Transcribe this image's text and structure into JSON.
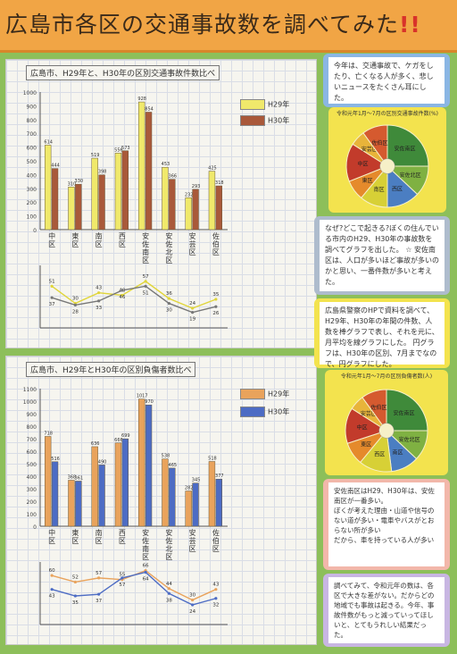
{
  "title": "広島市各区の交通事故数を調べてみた",
  "title_marks": "!!",
  "chart1": {
    "title": "広島市、H29年と、H30年の区別交通事故件数比べ",
    "legend": [
      "H29年",
      "H30年"
    ],
    "colors": [
      "#f0e96b",
      "#a9593a"
    ],
    "line_legend": [
      "H29年",
      "H30年"
    ],
    "line_label": "(千件あたり)"
  },
  "chart2": {
    "title": "広島市、H29年とH30年の区別負傷者数比べ",
    "legend": [
      "H29年",
      "H30年"
    ],
    "colors": [
      "#e9a35c",
      "#4d6cc4"
    ],
    "line_legend": [
      "H29年",
      "H30年"
    ],
    "line_label": "(千人あたり)"
  },
  "chart_data": [
    {
      "type": "bar",
      "title": "広島市、H29年と、H30年の区別交通事故件数比べ",
      "categories": [
        "中区",
        "東区",
        "南区",
        "西区",
        "安佐南区",
        "安佐北区",
        "安芸区",
        "佐伯区"
      ],
      "series": [
        {
          "name": "H29年",
          "values": [
            614,
            310,
            519,
            556,
            928,
            453,
            232,
            425
          ]
        },
        {
          "name": "H30年",
          "values": [
            444,
            330,
            398,
            573,
            854,
            366,
            293,
            318
          ]
        }
      ],
      "ylim": [
        0,
        1000
      ],
      "yticks": [
        0,
        100,
        200,
        300,
        400,
        500,
        600,
        700,
        800,
        900,
        1000
      ]
    },
    {
      "type": "line",
      "title": "",
      "categories": [
        "中区",
        "東区",
        "南区",
        "西区",
        "安佐南区",
        "安佐北区",
        "安芸区",
        "佐伯区"
      ],
      "series": [
        {
          "name": "H29年",
          "values": [
            51,
            30,
            43,
            40,
            57,
            36,
            24,
            35
          ]
        },
        {
          "name": "H30年",
          "values": [
            37,
            28,
            33,
            46,
            51,
            30,
            19,
            26
          ]
        }
      ]
    },
    {
      "type": "bar",
      "title": "広島市、H29年とH30年の区別負傷者数比べ",
      "categories": [
        "中区",
        "東区",
        "南区",
        "西区",
        "安佐南区",
        "安佐北区",
        "安芸区",
        "佐伯区"
      ],
      "series": [
        {
          "name": "H29年",
          "values": [
            718,
            368,
            636,
            666,
            1017,
            538,
            282,
            518
          ]
        },
        {
          "name": "H30年",
          "values": [
            516,
            361,
            490,
            699,
            970,
            465,
            345,
            377
          ]
        }
      ],
      "ylim": [
        0,
        1100
      ],
      "yticks": [
        0,
        100,
        200,
        300,
        400,
        500,
        600,
        700,
        800,
        900,
        1000,
        1100
      ]
    },
    {
      "type": "line",
      "title": "",
      "categories": [
        "中区",
        "東区",
        "南区",
        "西区",
        "安佐南区",
        "安佐北区",
        "安芸区",
        "佐伯区"
      ],
      "series": [
        {
          "name": "H29年",
          "values": [
            60,
            52,
            57,
            55,
            66,
            44,
            30,
            43
          ]
        },
        {
          "name": "H30年",
          "values": [
            43,
            35,
            37,
            57,
            64,
            38,
            24,
            32
          ]
        }
      ]
    }
  ],
  "notes": {
    "n1": "今年は、交通事故で、ケガをしたり、亡くなる人が多く、悲しいニュースをたくさん耳にした。",
    "n2": "なぜ?どこで起きる?ぼくの住んでいる市内のH29、H30年の事故数を調べてグラフを出した。",
    "n2b": "☆ 安佐南区は、人口が多いほど事故が多いのかと思い、一番件数が多いと考えた。",
    "n3": "広島県警察のHPで資料を調べて、H29年、H30年の年間の件数、人数を棒グラフで表し、それを元に、月平均を線グラフにした。",
    "n3b": "円グラフは、H30年の区別、7月までなので、円グラフにした。",
    "n4": "安佐南区はH29、H30年は、安佐南区が一番多い。",
    "n4b": "ぼくが考えた理由・山道や信号のない道が多い・電車やバスがとおらない所が多い",
    "n4c": "だから、車を持っている人が多い",
    "n5": "調べてみて、令和元年の数は、各区で大きな差がない。だからどの地域でも事故は起きる。今年、事故件数がもっと減っていってほしいと、とてもうれしい結果だった。"
  },
  "pie1_label": "令和元年1月〜7月の区別交通事故件数(%)",
  "pie2_label": "令和元年1月〜7月の区別負傷者数(人)",
  "pie_colors": [
    "#3f8a3a",
    "#7fb142",
    "#4b7ec2",
    "#d7d036",
    "#e58a2b",
    "#c23b2b",
    "#e8b43a",
    "#d55a2f"
  ],
  "pie1": [
    {
      "label": "安佐南区",
      "value": 25
    },
    {
      "label": "安佐北区",
      "value": 12
    },
    {
      "label": "西区",
      "value": 13
    },
    {
      "label": "南区",
      "value": 11
    },
    {
      "label": "東区",
      "value": 8
    },
    {
      "label": "中区",
      "value": 15
    },
    {
      "label": "安芸区",
      "value": 6
    },
    {
      "label": "佐伯区",
      "value": 10
    }
  ],
  "pie2": [
    {
      "label": "安佐南区",
      "value": 25
    },
    {
      "label": "安佐北区",
      "value": 12
    },
    {
      "label": "南区",
      "value": 11
    },
    {
      "label": "西区",
      "value": 13
    },
    {
      "label": "東区",
      "value": 9
    },
    {
      "label": "中区",
      "value": 14
    },
    {
      "label": "安芸区",
      "value": 6
    },
    {
      "label": "佐伯区",
      "value": 10
    }
  ]
}
